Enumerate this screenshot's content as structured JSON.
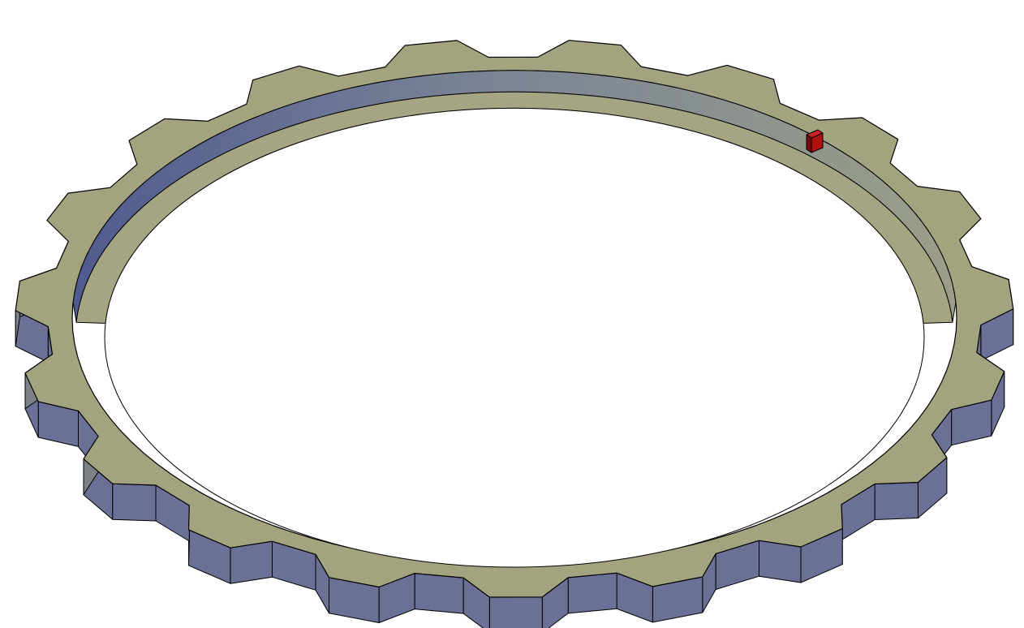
{
  "scene": {
    "background": "#ffffff",
    "object": "gear-ring",
    "tooth_count": 19,
    "colors": {
      "top_face": "#a3a37f",
      "top_face_shadow": "#96967a",
      "side_blue": "#6b7196",
      "side_gray": "#7d8287",
      "inner_wall_dark": "#4f5b8f",
      "inner_wall_light": "#8c9388",
      "inner_ledge": "#a6a583",
      "edge": "#000000",
      "marker_front": "#b01010",
      "marker_side": "#7a0a0a",
      "marker_top": "#d02020"
    }
  }
}
